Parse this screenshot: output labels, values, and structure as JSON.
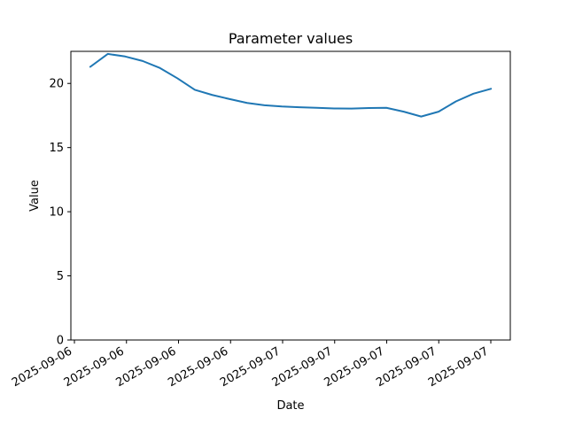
{
  "chart_data": {
    "type": "line",
    "title": "Parameter values",
    "xlabel": "Date",
    "ylabel": "Value",
    "x_ticks": [
      "2025-09-06",
      "2025-09-06",
      "2025-09-06",
      "2025-09-06",
      "2025-09-07",
      "2025-09-07",
      "2025-09-07",
      "2025-09-07",
      "2025-09-07"
    ],
    "y_ticks": [
      0,
      5,
      10,
      15,
      20
    ],
    "ylim": [
      0,
      22.5
    ],
    "grid": false,
    "legend": "none",
    "series": [
      {
        "color": "#1f77b4",
        "values": [
          21.3,
          22.3,
          22.1,
          21.75,
          21.2,
          20.4,
          19.5,
          19.1,
          18.78,
          18.48,
          18.3,
          18.2,
          18.14,
          18.1,
          18.05,
          18.04,
          18.08,
          18.1,
          17.8,
          17.42,
          17.8,
          18.6,
          19.2,
          19.58
        ]
      }
    ]
  }
}
